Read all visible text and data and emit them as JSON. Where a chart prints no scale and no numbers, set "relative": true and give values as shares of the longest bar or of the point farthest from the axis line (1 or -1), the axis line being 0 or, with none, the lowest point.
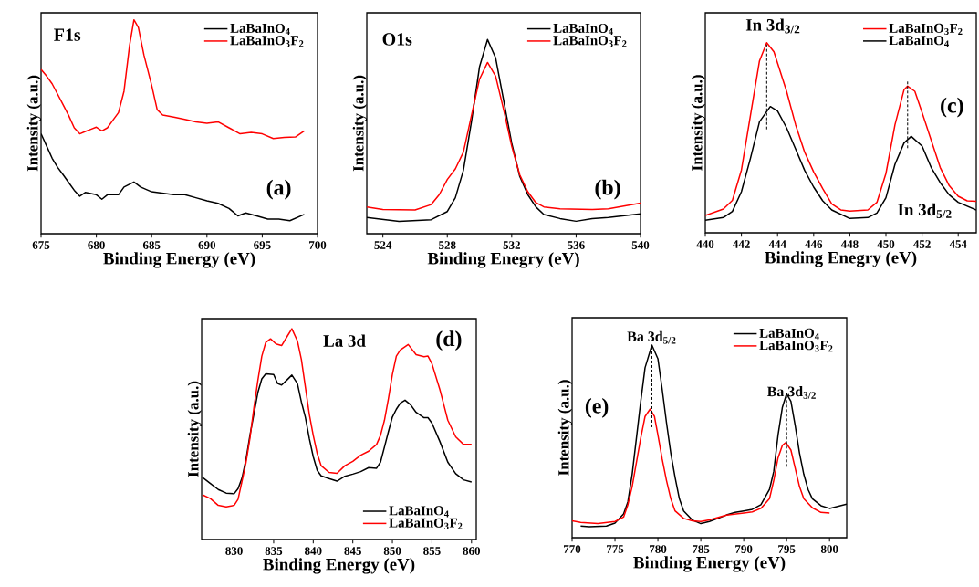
{
  "chart_data": [
    {
      "type": "line",
      "relative": true,
      "xlabel": "Binding Energy (eV)",
      "ylabel": "Intensity (a.u.)",
      "xlim": [
        675,
        700
      ],
      "xticks": [
        675,
        680,
        685,
        690,
        695,
        700
      ],
      "legend": "top right",
      "annotations": [
        "F1s",
        "(a)"
      ],
      "series": [
        {
          "name": "LaBaInO$_{4}$",
          "color": "#000000",
          "x": [
            675,
            675.5,
            676,
            676.5,
            677,
            677.5,
            678,
            678.5,
            679,
            680,
            680.5,
            681,
            682,
            682.5,
            683.4,
            684,
            685,
            686,
            687,
            688,
            689,
            690,
            691,
            692,
            692.8,
            693.5,
            694.5,
            695.5,
            696.5,
            697.5,
            698.8
          ],
          "values": [
            0.467,
            0.41,
            0.353,
            0.31,
            0.275,
            0.239,
            0.203,
            0.175,
            0.193,
            0.182,
            0.161,
            0.182,
            0.182,
            0.218,
            0.242,
            0.218,
            0.196,
            0.189,
            0.182,
            0.182,
            0.168,
            0.154,
            0.142,
            0.118,
            0.083,
            0.097,
            0.083,
            0.068,
            0.068,
            0.061,
            0.09
          ]
        },
        {
          "name": "LaBaInO$_{3}$F$_{2}$",
          "color": "#ff0000",
          "x": [
            675,
            675.5,
            676,
            676.5,
            677,
            677.5,
            678,
            678.5,
            679,
            679.5,
            680,
            680.5,
            681,
            681.5,
            682,
            682.5,
            683,
            683.4,
            683.8,
            684.3,
            685,
            685.5,
            686,
            687,
            688,
            689,
            690,
            691,
            692,
            693,
            694,
            695,
            696,
            697,
            698,
            698.8
          ],
          "values": [
            0.768,
            0.737,
            0.701,
            0.652,
            0.602,
            0.552,
            0.495,
            0.467,
            0.478,
            0.488,
            0.498,
            0.481,
            0.495,
            0.531,
            0.566,
            0.666,
            0.879,
            1,
            0.964,
            0.836,
            0.694,
            0.58,
            0.555,
            0.545,
            0.535,
            0.523,
            0.516,
            0.523,
            0.495,
            0.467,
            0.474,
            0.467,
            0.445,
            0.45,
            0.452,
            0.481
          ]
        }
      ]
    },
    {
      "type": "line",
      "relative": true,
      "xlabel": "Binding Enegry (eV)",
      "ylabel": "Intensity (a.u.)",
      "xlim": [
        523,
        540
      ],
      "xticks": [
        524,
        528,
        532,
        536,
        540
      ],
      "legend": "top right",
      "annotations": [
        "O1s",
        "(b)"
      ],
      "series": [
        {
          "name": "LaBaInO$_{4}$",
          "color": "#000000",
          "x": [
            523,
            525,
            527,
            528,
            528.5,
            529,
            529.5,
            530,
            530.5,
            531,
            531.5,
            532,
            532.5,
            533,
            533.5,
            534,
            535,
            536,
            537,
            538,
            540
          ],
          "values": [
            0.083,
            0.063,
            0.072,
            0.114,
            0.185,
            0.326,
            0.577,
            0.859,
            1,
            0.906,
            0.687,
            0.467,
            0.295,
            0.201,
            0.138,
            0.099,
            0.078,
            0.064,
            0.078,
            0.083,
            0.102
          ]
        },
        {
          "name": "LaBaInO$_{3}$F$_{2}$",
          "color": "#ff0000",
          "x": [
            523,
            524,
            526,
            527,
            527.5,
            528,
            528.5,
            529,
            529.5,
            530,
            530.5,
            531,
            531.5,
            532,
            532.5,
            533,
            533.5,
            534,
            535,
            537,
            538,
            540
          ],
          "values": [
            0.138,
            0.125,
            0.122,
            0.15,
            0.201,
            0.279,
            0.334,
            0.42,
            0.608,
            0.796,
            0.882,
            0.812,
            0.639,
            0.451,
            0.303,
            0.216,
            0.16,
            0.138,
            0.128,
            0.125,
            0.128,
            0.157
          ]
        }
      ]
    },
    {
      "type": "line",
      "relative": true,
      "xlabel": "Binding Enegry (eV)",
      "ylabel": "Intensity (a.u.)",
      "xlim": [
        440,
        455
      ],
      "xticks": [
        440,
        442,
        444,
        446,
        448,
        450,
        452,
        454
      ],
      "legend": "top right",
      "annotations": [
        "In 3d$_{3/2}$",
        "(c)",
        "In 3d$_{5/2}$"
      ],
      "series": [
        {
          "name": "LaBaInO$_{3}$F$_{2}$",
          "color": "#ff0000",
          "x": [
            440,
            441,
            441.5,
            442,
            442.5,
            443,
            443.4,
            443.8,
            444.5,
            445,
            445.5,
            446,
            446.5,
            447,
            447.5,
            448,
            449,
            449.5,
            450,
            450.5,
            451,
            451.2,
            451.6,
            452,
            452.5,
            453,
            453.5,
            454,
            454.5,
            455
          ],
          "values": [
            0.091,
            0.125,
            0.17,
            0.33,
            0.618,
            0.904,
            1,
            0.952,
            0.744,
            0.568,
            0.424,
            0.32,
            0.232,
            0.152,
            0.12,
            0.114,
            0.12,
            0.16,
            0.312,
            0.568,
            0.752,
            0.771,
            0.744,
            0.632,
            0.488,
            0.344,
            0.248,
            0.192,
            0.168,
            0.165
          ]
        },
        {
          "name": "LaBaInO$_{4}$",
          "color": "#000000",
          "x": [
            440,
            441,
            441.5,
            442,
            442.5,
            443,
            443.6,
            444,
            444.5,
            445,
            445.5,
            446,
            446.5,
            447,
            448,
            449,
            449.5,
            450,
            450.5,
            451,
            451.4,
            452,
            452.5,
            453,
            453.5,
            454,
            455
          ],
          "values": [
            0.066,
            0.08,
            0.112,
            0.216,
            0.392,
            0.584,
            0.664,
            0.64,
            0.552,
            0.44,
            0.328,
            0.24,
            0.168,
            0.12,
            0.075,
            0.08,
            0.104,
            0.184,
            0.36,
            0.472,
            0.507,
            0.456,
            0.344,
            0.264,
            0.2,
            0.16,
            0.12
          ]
        },
        {
          "type": "line",
          "line_style": "dashed",
          "color": "#000000",
          "x": [
            443.4,
            443.4
          ],
          "values": [
            1,
            0.536
          ]
        },
        {
          "type": "line",
          "line_style": "dashed",
          "color": "#000000",
          "x": [
            451.2,
            451.2
          ],
          "values": [
            0.805,
            0.443
          ]
        }
      ]
    },
    {
      "type": "line",
      "relative": true,
      "xlabel": "Binding Energy (eV)",
      "ylabel": "Intensity (a.u.)",
      "xlim": [
        825.9,
        860.6
      ],
      "xticks": [
        830,
        835,
        840,
        845,
        850,
        855,
        860
      ],
      "legend": "bottom right",
      "annotations": [
        "La 3d",
        "(d)"
      ],
      "series": [
        {
          "name": "LaBaInO$_{4}$",
          "color": "#000000",
          "x": [
            826,
            827,
            828,
            829,
            830,
            830.5,
            831,
            831.5,
            832,
            832.5,
            833,
            833.5,
            834,
            835,
            835.5,
            836,
            836.6,
            837.3,
            838,
            838.5,
            839,
            839.5,
            840,
            840.5,
            841,
            842,
            843,
            844,
            845,
            846,
            847,
            848,
            848.5,
            849,
            849.5,
            850,
            850.5,
            851,
            851.6,
            852.3,
            853,
            854,
            854.5,
            855,
            856,
            857,
            858,
            859,
            860
          ],
          "values": [
            0.295,
            0.266,
            0.237,
            0.22,
            0.217,
            0.241,
            0.292,
            0.379,
            0.494,
            0.595,
            0.697,
            0.762,
            0.786,
            0.783,
            0.74,
            0.733,
            0.754,
            0.78,
            0.74,
            0.653,
            0.581,
            0.48,
            0.393,
            0.328,
            0.302,
            0.289,
            0.277,
            0.3,
            0.31,
            0.322,
            0.341,
            0.338,
            0.367,
            0.439,
            0.512,
            0.581,
            0.618,
            0.647,
            0.661,
            0.639,
            0.603,
            0.578,
            0.578,
            0.552,
            0.465,
            0.367,
            0.312,
            0.283,
            0.273
          ]
        },
        {
          "name": "LaBaInO$_{3}$F$_{2}$",
          "color": "#ff0000",
          "x": [
            826,
            827,
            828,
            829,
            830,
            830.5,
            831,
            831.5,
            832,
            832.5,
            833,
            833.5,
            834,
            834.6,
            835.3,
            836,
            836.6,
            837.3,
            838,
            838.5,
            839,
            839.5,
            840,
            840.5,
            841,
            842,
            843,
            844,
            845,
            846,
            847,
            848,
            848.5,
            849,
            849.5,
            850,
            850.5,
            851,
            852,
            853,
            854,
            854.5,
            855,
            856,
            856.5,
            857,
            858,
            859,
            860
          ],
          "values": [
            0.212,
            0.194,
            0.162,
            0.155,
            0.162,
            0.191,
            0.277,
            0.364,
            0.48,
            0.624,
            0.754,
            0.87,
            0.935,
            0.952,
            0.928,
            0.92,
            0.957,
            1,
            0.942,
            0.855,
            0.725,
            0.595,
            0.494,
            0.408,
            0.35,
            0.318,
            0.314,
            0.35,
            0.371,
            0.4,
            0.419,
            0.451,
            0.494,
            0.566,
            0.668,
            0.783,
            0.87,
            0.899,
            0.925,
            0.877,
            0.867,
            0.87,
            0.834,
            0.711,
            0.639,
            0.566,
            0.487,
            0.451,
            0.451
          ]
        }
      ]
    },
    {
      "type": "line",
      "relative": true,
      "xlabel": "Binding Energy (eV)",
      "ylabel": "Intensity (a.u.)",
      "xlim": [
        770,
        802
      ],
      "xticks": [
        770,
        775,
        780,
        785,
        790,
        795,
        800
      ],
      "legend": "top right",
      "annotations": [
        "Ba 3d$_{5/2}$",
        "Ba 3d$_{3/2}$",
        "(e)"
      ],
      "series": [
        {
          "name": "LaBaInO$_{4}$",
          "color": "#000000",
          "x": [
            771,
            772,
            774,
            775,
            776,
            776.5,
            777,
            777.5,
            778,
            778.5,
            779.3,
            780,
            780.5,
            781,
            781.5,
            782,
            782.5,
            783,
            784,
            785,
            786,
            787,
            788,
            789,
            790,
            791,
            792,
            793,
            793.5,
            794,
            794.5,
            795,
            795.5,
            796,
            796.5,
            797,
            797.5,
            798,
            799,
            800,
            801,
            802
          ],
          "values": [
            0.06,
            0.057,
            0.06,
            0.076,
            0.123,
            0.186,
            0.329,
            0.518,
            0.708,
            0.882,
            1,
            0.929,
            0.77,
            0.597,
            0.439,
            0.313,
            0.202,
            0.139,
            0.092,
            0.073,
            0.084,
            0.1,
            0.118,
            0.131,
            0.139,
            0.147,
            0.171,
            0.25,
            0.344,
            0.534,
            0.676,
            0.747,
            0.708,
            0.581,
            0.439,
            0.329,
            0.25,
            0.202,
            0.166,
            0.152,
            0.163,
            0.174
          ]
        },
        {
          "name": "LaBaInO$_{3}$F$_{2}$",
          "color": "#ff0000",
          "x": [
            770,
            771,
            773,
            775,
            776,
            776.5,
            777,
            777.5,
            778,
            778.5,
            779.1,
            779.6,
            780,
            780.5,
            781,
            781.5,
            782,
            783,
            784,
            785,
            786,
            788,
            790,
            791,
            792,
            793,
            793.5,
            794,
            794.5,
            794.9,
            795.5,
            796,
            796.5,
            797,
            798,
            799,
            800
          ],
          "values": [
            0.088,
            0.079,
            0.073,
            0.084,
            0.107,
            0.171,
            0.265,
            0.392,
            0.518,
            0.629,
            0.668,
            0.629,
            0.534,
            0.408,
            0.297,
            0.202,
            0.139,
            0.1,
            0.088,
            0.084,
            0.092,
            0.117,
            0.128,
            0.134,
            0.152,
            0.202,
            0.297,
            0.415,
            0.479,
            0.494,
            0.455,
            0.36,
            0.265,
            0.202,
            0.155,
            0.131,
            0.128
          ]
        },
        {
          "type": "line",
          "line_style": "dashed",
          "color": "#000000",
          "x": [
            779.3,
            779.3
          ],
          "values": [
            1,
            0.573
          ]
        },
        {
          "type": "line",
          "line_style": "dashed",
          "color": "#000000",
          "x": [
            795,
            795
          ],
          "values": [
            0.747,
            0.363
          ]
        }
      ]
    }
  ]
}
